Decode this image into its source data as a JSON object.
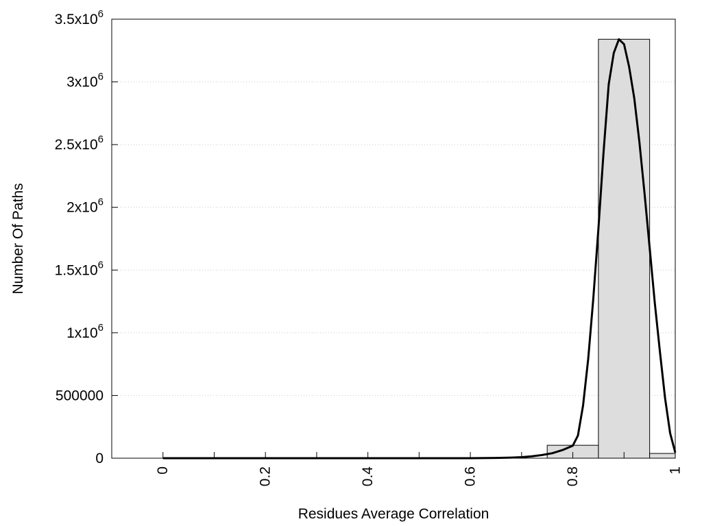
{
  "chart_data": {
    "type": "bar",
    "title": "",
    "xlabel": "Residues Average Correlation",
    "ylabel": "Number Of Paths",
    "xlim": [
      -0.1,
      1.0
    ],
    "ylim": [
      0,
      3500000
    ],
    "grid": {
      "horizontal": true,
      "style": "dotted"
    },
    "x_ticks": [
      {
        "value": 0,
        "label": "0"
      },
      {
        "value": 0.2,
        "label": "0.2"
      },
      {
        "value": 0.4,
        "label": "0.4"
      },
      {
        "value": 0.6,
        "label": "0.6"
      },
      {
        "value": 0.8,
        "label": "0.8"
      },
      {
        "value": 1.0,
        "label": "1"
      }
    ],
    "x_minor_ticks": [
      0.1,
      0.3,
      0.5,
      0.7,
      0.9
    ],
    "y_ticks": [
      {
        "value": 0,
        "base": "0",
        "exp": ""
      },
      {
        "value": 500000,
        "base": "500000",
        "exp": ""
      },
      {
        "value": 1000000,
        "base": "1x10",
        "exp": "6"
      },
      {
        "value": 1500000,
        "base": "1.5x10",
        "exp": "6"
      },
      {
        "value": 2000000,
        "base": "2x10",
        "exp": "6"
      },
      {
        "value": 2500000,
        "base": "2.5x10",
        "exp": "6"
      },
      {
        "value": 3000000,
        "base": "3x10",
        "exp": "6"
      },
      {
        "value": 3500000,
        "base": "3.5x10",
        "exp": "6"
      }
    ],
    "bars": [
      {
        "x0": 0.75,
        "x1": 0.85,
        "value": 103000
      },
      {
        "x0": 0.85,
        "x1": 0.95,
        "value": 3340000
      },
      {
        "x0": 0.95,
        "x1": 1.0,
        "value": 38000
      }
    ],
    "series": [
      {
        "type": "line",
        "x": [
          0.0,
          0.1,
          0.2,
          0.3,
          0.4,
          0.5,
          0.6,
          0.65,
          0.68,
          0.7,
          0.72,
          0.74,
          0.76,
          0.78,
          0.8,
          0.81,
          0.82,
          0.83,
          0.84,
          0.85,
          0.86,
          0.87,
          0.88,
          0.89,
          0.9,
          0.91,
          0.92,
          0.93,
          0.94,
          0.95,
          0.96,
          0.97,
          0.98,
          0.99,
          1.0
        ],
        "y": [
          0,
          0,
          0,
          0,
          0,
          0,
          0,
          2000,
          5000,
          8000,
          15000,
          25000,
          40000,
          65000,
          100000,
          180000,
          420000,
          790000,
          1270000,
          1830000,
          2440000,
          2980000,
          3230000,
          3340000,
          3300000,
          3120000,
          2870000,
          2520000,
          2110000,
          1680000,
          1240000,
          850000,
          480000,
          200000,
          45000
        ]
      }
    ],
    "colors": {
      "bar_fill": "#dddddd",
      "bar_stroke": "#000000",
      "line": "#000000",
      "grid": "#c8c8c8"
    }
  }
}
